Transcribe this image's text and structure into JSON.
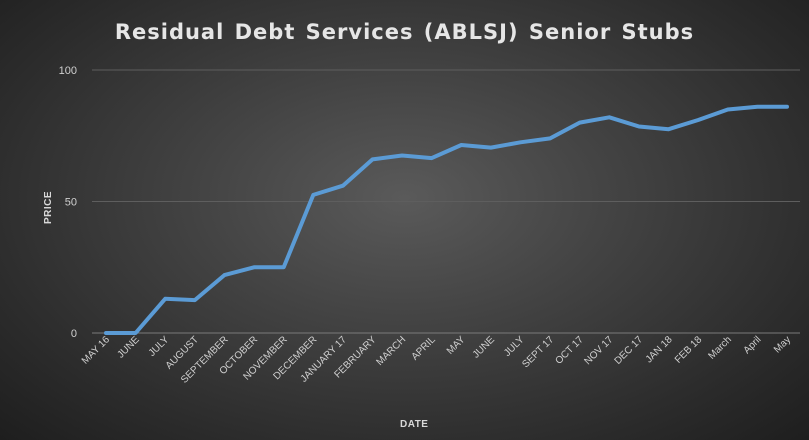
{
  "chart_data": {
    "type": "line",
    "title": "Residual Debt Services (ABLSJ) Senior Stubs",
    "xlabel": "DATE",
    "ylabel": "PRICE",
    "ylim": [
      0,
      100
    ],
    "yticks": [
      0,
      50,
      100
    ],
    "grid": true,
    "legend": "none",
    "line_color": "#5b9bd5",
    "categories": [
      "MAY 16",
      "JUNE",
      "JULY",
      "AUGUST",
      "SEPTEMBER",
      "OCTOBER",
      "NOVEMBER",
      "DECEMBER",
      "JANUARY 17",
      "FEBRUARY",
      "MARCH",
      "APRIL",
      "MAY",
      "JUNE",
      "JULY",
      "SEPT 17",
      "OCT 17",
      "NOV 17",
      "DEC 17",
      "JAN 18",
      "FEB 18",
      "March",
      "April",
      "May"
    ],
    "series": [
      {
        "values": [
          0,
          0,
          13,
          12.5,
          22,
          25,
          25,
          52.5,
          56,
          66,
          67.5,
          66.5,
          71.5,
          70.5,
          72.5,
          74,
          80,
          82,
          78.5,
          77.5,
          81,
          85,
          86,
          86
        ]
      }
    ]
  }
}
